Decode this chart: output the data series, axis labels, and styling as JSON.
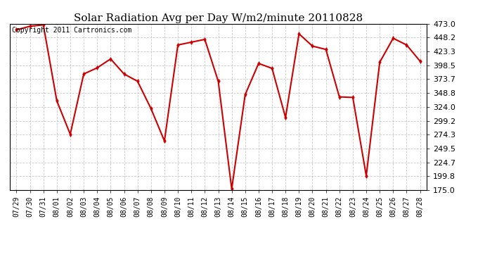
{
  "title": "Solar Radiation Avg per Day W/m2/minute 20110828",
  "copyright": "Copyright 2011 Cartronics.com",
  "x_labels": [
    "07/29",
    "07/30",
    "07/31",
    "08/01",
    "08/02",
    "08/03",
    "08/04",
    "08/05",
    "08/06",
    "08/07",
    "08/08",
    "08/09",
    "08/10",
    "08/11",
    "08/12",
    "08/13",
    "08/14",
    "08/15",
    "08/16",
    "08/17",
    "08/18",
    "08/19",
    "08/20",
    "08/21",
    "08/22",
    "08/23",
    "08/24",
    "08/25",
    "08/26",
    "08/27",
    "08/28"
  ],
  "y_values": [
    462.0,
    468.5,
    471.0,
    335.0,
    275.0,
    383.0,
    394.0,
    410.0,
    383.0,
    370.0,
    321.0,
    263.0,
    435.0,
    440.0,
    445.0,
    370.0,
    177.0,
    346.0,
    402.0,
    393.0,
    305.0,
    455.0,
    433.0,
    427.0,
    342.0,
    341.0,
    200.5,
    404.0,
    447.0,
    435.0,
    406.0
  ],
  "line_color": "#cc0000",
  "marker": "d",
  "marker_size": 3,
  "line_width": 1.5,
  "ylim": [
    175.0,
    473.0
  ],
  "yticks": [
    175.0,
    199.8,
    224.7,
    249.5,
    274.3,
    299.2,
    324.0,
    348.8,
    373.7,
    398.5,
    423.3,
    448.2,
    473.0
  ],
  "background_color": "#ffffff",
  "grid_color": "#bbbbbb",
  "title_fontsize": 11,
  "copyright_fontsize": 7,
  "tick_fontsize": 7,
  "ytick_fontsize": 8
}
